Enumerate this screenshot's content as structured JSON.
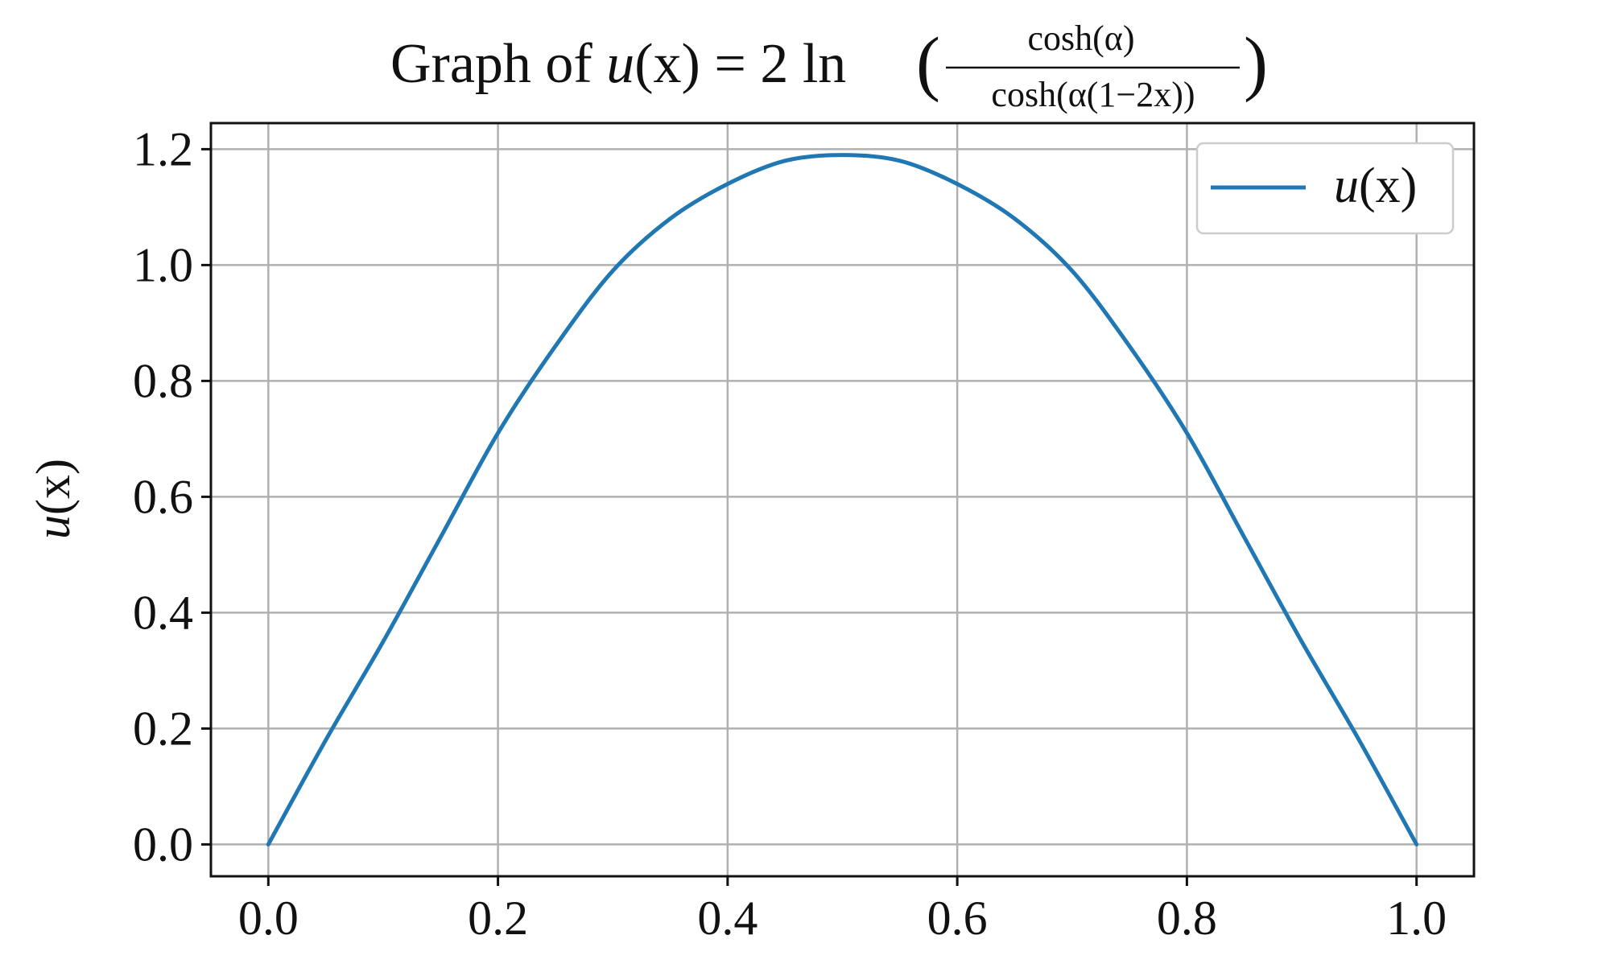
{
  "chart_data": {
    "type": "line",
    "title": {
      "prefix": "Graph of ",
      "func": "u",
      "arg": "(x)",
      "eq": " = 2 ln",
      "numerator": "cosh(α)",
      "denominator": "cosh(α(1−2x))",
      "paren_open": "(",
      "paren_close": ")"
    },
    "xlabel": "",
    "ylabel": "u(x)",
    "ylabel_func": "u",
    "ylabel_arg": "(x)",
    "xlim": [
      -0.05,
      1.05
    ],
    "ylim": [
      -0.055,
      1.245
    ],
    "xticks": [
      0.0,
      0.2,
      0.4,
      0.6,
      0.8,
      1.0
    ],
    "xtick_labels": [
      "0.0",
      "0.2",
      "0.4",
      "0.6",
      "0.8",
      "1.0"
    ],
    "yticks": [
      0.0,
      0.2,
      0.4,
      0.6,
      0.8,
      1.0,
      1.2
    ],
    "ytick_labels": [
      "0.0",
      "0.2",
      "0.4",
      "0.6",
      "0.8",
      "1.0",
      "1.2"
    ],
    "grid": true,
    "legend_placement": "top-right",
    "series": [
      {
        "name": "u(x)",
        "name_func": "u",
        "name_arg": "(x)",
        "color": "#1f77b4",
        "x": [
          0.0,
          0.05,
          0.1,
          0.15,
          0.2,
          0.25,
          0.3,
          0.35,
          0.4,
          0.45,
          0.5,
          0.55,
          0.6,
          0.65,
          0.7,
          0.75,
          0.8,
          0.85,
          0.9,
          0.95,
          1.0
        ],
        "y": [
          0.0,
          0.18,
          0.35,
          0.53,
          0.71,
          0.86,
          0.99,
          1.08,
          1.14,
          1.18,
          1.19,
          1.18,
          1.14,
          1.08,
          0.99,
          0.86,
          0.71,
          0.53,
          0.35,
          0.18,
          0.0
        ]
      }
    ]
  }
}
